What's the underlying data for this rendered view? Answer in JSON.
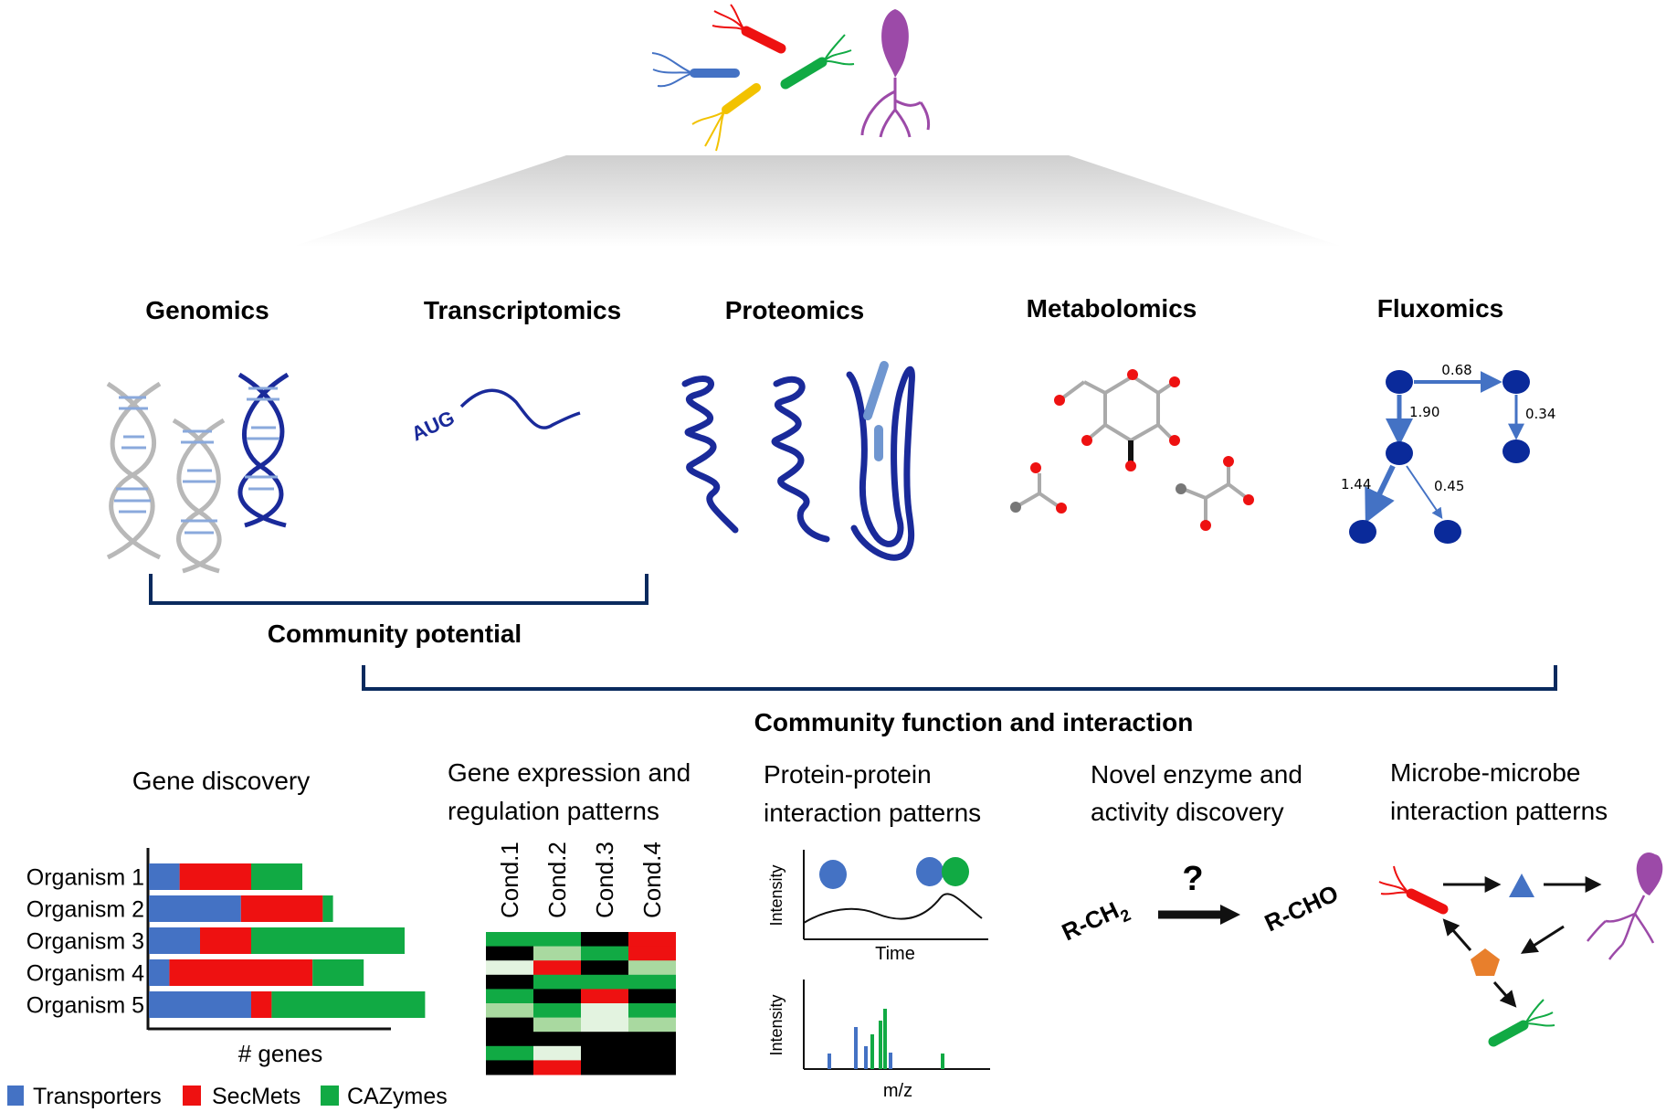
{
  "omics": {
    "genomics": "Genomics",
    "transcriptomics": "Transcriptomics",
    "proteomics": "Proteomics",
    "metabolomics": "Metabolomics",
    "fluxomics": "Fluxomics"
  },
  "transcript_label": "AUG",
  "flux_values": {
    "top": "0.68",
    "left_down": "1.90",
    "right_down": "0.34",
    "bottom_left": "1.44",
    "bottom_right": "0.45"
  },
  "brackets": {
    "potential": "Community potential",
    "function": "Community function and interaction"
  },
  "sections": {
    "gene_discovery": "Gene discovery",
    "gene_expression_1": "Gene expression and",
    "gene_expression_2": "regulation patterns",
    "ppi_1": "Protein-protein",
    "ppi_2": "interaction patterns",
    "enzyme_1": "Novel enzyme and",
    "enzyme_2": "activity discovery",
    "microbe_1": "Microbe-microbe",
    "microbe_2": "interaction patterns"
  },
  "chart_data": [
    {
      "type": "bar",
      "orientation": "horizontal",
      "stacked": true,
      "categories": [
        "Organism 1",
        "Organism 2",
        "Organism 3",
        "Organism 4",
        "Organism 5"
      ],
      "series": [
        {
          "name": "Transporters",
          "color": "#4472c4",
          "values": [
            3,
            9,
            5,
            2,
            10
          ]
        },
        {
          "name": "SecMets",
          "color": "#ee1111",
          "values": [
            7,
            8,
            5,
            14,
            2
          ]
        },
        {
          "name": "CAZymes",
          "color": "#11aa44",
          "values": [
            5,
            1,
            15,
            5,
            15
          ]
        }
      ],
      "xlabel": "# genes",
      "ylabel": ""
    },
    {
      "type": "heatmap",
      "columns": [
        "Cond.1",
        "Cond.2",
        "Cond.3",
        "Cond.4"
      ],
      "cell_levels": [
        [
          "green",
          "green",
          "black",
          "red"
        ],
        [
          "black",
          "light-green",
          "green",
          "red"
        ],
        [
          "pale",
          "red",
          "black",
          "light-green"
        ],
        [
          "black",
          "green",
          "green",
          "green"
        ],
        [
          "green",
          "black",
          "red",
          "black"
        ],
        [
          "light-green",
          "green",
          "pale",
          "green"
        ],
        [
          "black",
          "light-green",
          "pale",
          "light-green"
        ],
        [
          "black",
          "black",
          "black",
          "black"
        ],
        [
          "green",
          "pale",
          "black",
          "black"
        ],
        [
          "black",
          "red",
          "black",
          "black"
        ]
      ],
      "level_colors": {
        "black": "#000000",
        "green": "#11aa44",
        "light-green": "#a9d9a0",
        "pale": "#e3f3e0",
        "red": "#ee1111"
      }
    }
  ],
  "ppi": {
    "chart1_ylabel": "Intensity",
    "chart1_xlabel": "Time",
    "chart2_ylabel": "Intensity",
    "chart2_xlabel": "m/z"
  },
  "enzyme": {
    "substrate": "R-CH",
    "substrate_sub": "2",
    "question": "?",
    "product": "R-CHO"
  },
  "colors": {
    "navy": "#0a2a78",
    "blue": "#4472c4",
    "red": "#ee1111",
    "green": "#11aa44",
    "yellow": "#f2c200",
    "purple": "#9c4aa8",
    "orange": "#e87f2c"
  }
}
